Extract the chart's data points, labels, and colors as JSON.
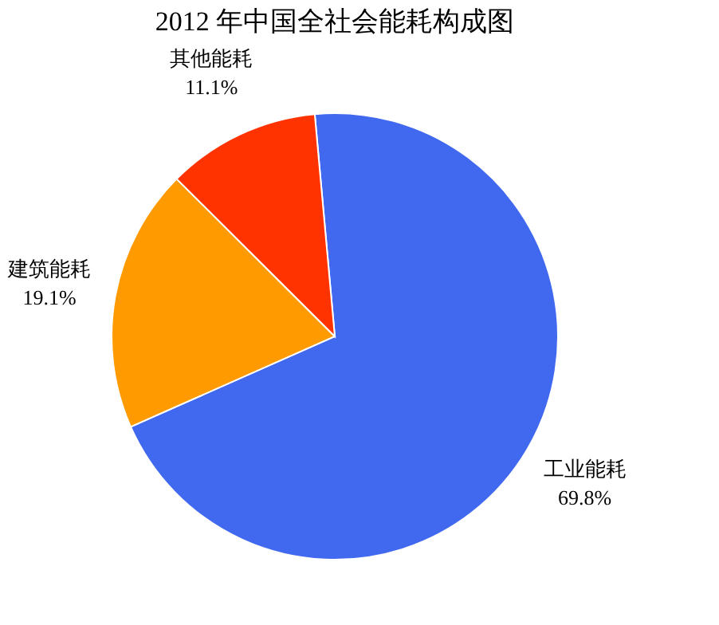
{
  "chart_data": {
    "type": "pie",
    "title": "2012 年中国全社会能耗构成图",
    "categories": [
      "工业能耗",
      "建筑能耗",
      "其他能耗"
    ],
    "values": [
      69.8,
      19.1,
      11.1
    ],
    "value_labels": [
      "69.8%",
      "19.1%",
      "11.1%"
    ],
    "colors": [
      "#4169f0",
      "#ff9a00",
      "#ff3300"
    ],
    "legend": false
  }
}
